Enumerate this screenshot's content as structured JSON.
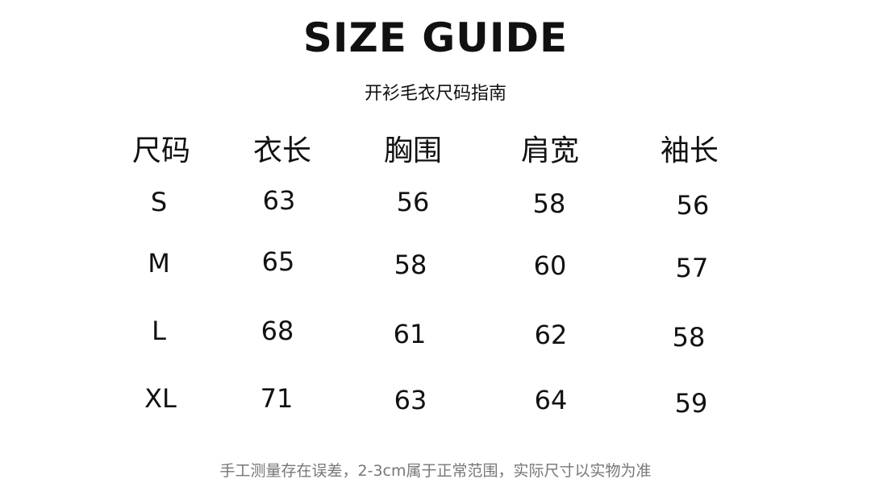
{
  "title": "SIZE GUIDE",
  "subtitle": "开衫毛衣尺码指南",
  "table": {
    "headers": [
      "尺码",
      "衣长",
      "胸围",
      "肩宽",
      "袖长"
    ],
    "rows": [
      [
        "S",
        "63",
        "56",
        "58",
        "56"
      ],
      [
        "M",
        "65",
        "58",
        "60",
        "57"
      ],
      [
        "L",
        "68",
        "61",
        "62",
        "58"
      ],
      [
        "XL",
        "71",
        "63",
        "64",
        "59"
      ]
    ]
  },
  "note": "手工测量存在误差，2-3cm属于正常范围，实际尺寸以实物为准"
}
